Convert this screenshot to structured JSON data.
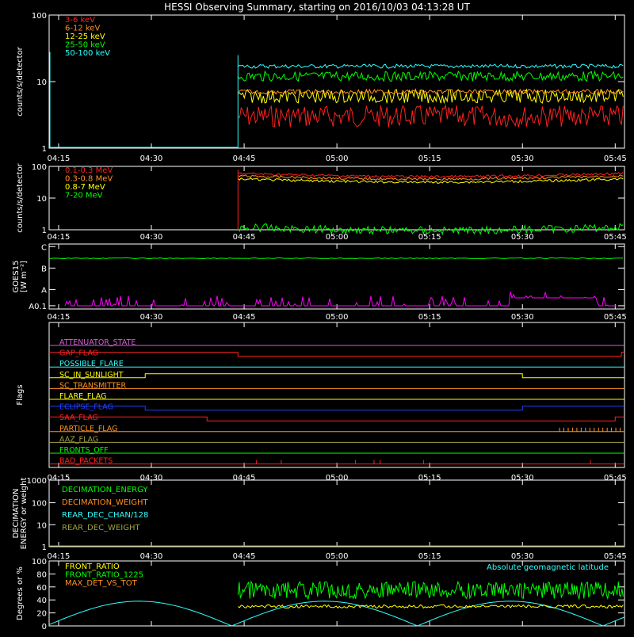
{
  "title": "HESSI Observing Summary, starting on 2016/10/03 04:13:28 UT",
  "x_ticks": [
    "04:15",
    "04:30",
    "04:45",
    "05:00",
    "05:15",
    "05:30",
    "05:45"
  ],
  "colors": {
    "background": "#000000",
    "axes": "#ffffff",
    "red": "#ff2020",
    "orange": "#ff9020",
    "yellow": "#ffff00",
    "green": "#00ff00",
    "cyan": "#30ffff",
    "blue": "#2040ff",
    "magenta": "#ff00ff",
    "olive": "#a0a040",
    "plum": "#d060d0"
  },
  "chart_data": [
    {
      "type": "line",
      "ylabel": "counts/s/detector",
      "scale": "log",
      "ylim": [
        1,
        100
      ],
      "y_ticks": [
        "1",
        "10",
        "100"
      ],
      "series": [
        {
          "name": "3-6 keV",
          "color": "#ff2020",
          "level": 3
        },
        {
          "name": "6-12 keV",
          "color": "#ff9020",
          "level": 7
        },
        {
          "name": "12-25 keV",
          "color": "#ffff00",
          "level": 6
        },
        {
          "name": "25-50 keV",
          "color": "#00ff00",
          "level": 12
        },
        {
          "name": "50-100 keV",
          "color": "#30ffff",
          "level": 17
        }
      ]
    },
    {
      "type": "line",
      "ylabel": "counts/s/detector",
      "scale": "log",
      "ylim": [
        1,
        100
      ],
      "y_ticks": [
        "1",
        "10",
        "100"
      ],
      "series": [
        {
          "name": "0.1-0.3 MeV",
          "color": "#ff2020",
          "level": 60
        },
        {
          "name": "0.3-0.8 MeV",
          "color": "#ff9020",
          "level": 50
        },
        {
          "name": "0.8-7 MeV",
          "color": "#ffff00",
          "level": 40
        },
        {
          "name": "7-20 MeV",
          "color": "#00ff00",
          "level": 1.2
        }
      ]
    },
    {
      "type": "line",
      "ylabel": "GOES15 [W m⁻²]",
      "y_ticks": [
        "A0.1",
        "A",
        "B",
        "C"
      ],
      "series": [
        {
          "name": "GOES long",
          "color": "#00ff00",
          "level": "B8"
        },
        {
          "name": "GOES short",
          "color": "#ff00ff",
          "level": "A0.1"
        }
      ]
    },
    {
      "type": "line",
      "ylabel": "Flags",
      "flags": [
        {
          "name": "ATTENUATOR_STATE",
          "color": "#d060d0"
        },
        {
          "name": "GAP_FLAG",
          "color": "#ff2020"
        },
        {
          "name": "POSSIBLE_FLARE",
          "color": "#30ffff"
        },
        {
          "name": "SC_IN_SUNLIGHT",
          "color": "#ffff00"
        },
        {
          "name": "SC_TRANSMITTER",
          "color": "#ff9020"
        },
        {
          "name": "FLARE_FLAG",
          "color": "#ffff00"
        },
        {
          "name": "ECLIPSE_FLAG",
          "color": "#2040ff"
        },
        {
          "name": "SAA_FLAG",
          "color": "#ff2020"
        },
        {
          "name": "PARTICLE_FLAG",
          "color": "#ff9020"
        },
        {
          "name": "AAZ_FLAG",
          "color": "#a0a040"
        },
        {
          "name": "FRONTS_OFF",
          "color": "#00ff00"
        },
        {
          "name": "BAD_PACKETS",
          "color": "#ff2020"
        }
      ]
    },
    {
      "type": "line",
      "ylabel": "DECIMATION ENERGY or weight",
      "scale": "log",
      "ylim": [
        1,
        1000
      ],
      "y_ticks": [
        "1",
        "10",
        "100",
        "1000"
      ],
      "series": [
        {
          "name": "DECIMATION_ENERGY",
          "color": "#00ff00"
        },
        {
          "name": "DECIMATION_WEIGHT",
          "color": "#ff9020"
        },
        {
          "name": "REAR_DEC_CHAN/128",
          "color": "#30ffff"
        },
        {
          "name": "REAR_DEC_WEIGHT",
          "color": "#a0a040"
        }
      ]
    },
    {
      "type": "line",
      "ylabel": "Degrees or %",
      "ylim": [
        0,
        100
      ],
      "y_ticks": [
        "0",
        "20",
        "40",
        "60",
        "80",
        "100"
      ],
      "annotation": "Absolute geomagnetic latitude",
      "series": [
        {
          "name": "FRONT_RATIO",
          "color": "#ffff00",
          "level": 30
        },
        {
          "name": "FRONT_RATIO_1225",
          "color": "#00ff00",
          "level": 55
        },
        {
          "name": "MAX_DET_VS_TOT",
          "color": "#ff9020"
        }
      ]
    }
  ]
}
